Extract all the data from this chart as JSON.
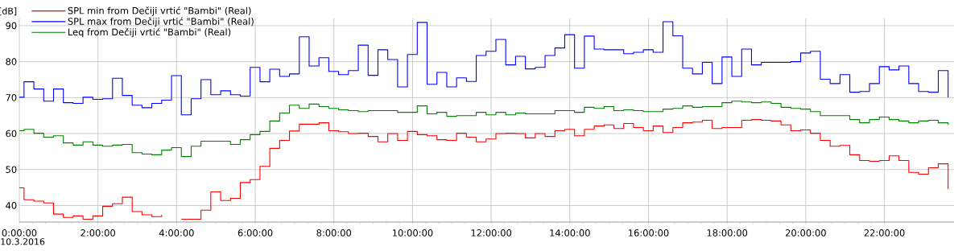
{
  "chart_data": {
    "type": "step",
    "ylabel": "[dB]",
    "annotations": [
      "10.3.2016"
    ],
    "x": [
      0,
      0.12,
      0.37,
      0.62,
      0.87,
      1.12,
      1.37,
      1.62,
      1.87,
      2.12,
      2.37,
      2.62,
      2.87,
      3.12,
      3.37,
      3.62,
      3.87,
      4.12,
      4.37,
      4.62,
      4.87,
      5.12,
      5.37,
      5.62,
      5.87,
      6.12,
      6.37,
      6.62,
      6.87,
      7.12,
      7.37,
      7.62,
      7.87,
      8.12,
      8.37,
      8.62,
      8.87,
      9.12,
      9.37,
      9.62,
      9.87,
      10.12,
      10.37,
      10.62,
      10.87,
      11.12,
      11.37,
      11.62,
      11.87,
      12.12,
      12.37,
      12.62,
      12.87,
      13.12,
      13.37,
      13.62,
      13.87,
      14.12,
      14.37,
      14.62,
      14.87,
      15.12,
      15.37,
      15.62,
      15.87,
      16.12,
      16.37,
      16.62,
      16.87,
      17.12,
      17.37,
      17.62,
      17.87,
      18.12,
      18.37,
      18.62,
      18.87,
      19.12,
      19.37,
      19.62,
      19.87,
      20.12,
      20.37,
      20.62,
      20.87,
      21.12,
      21.37,
      21.62,
      21.87,
      22.12,
      22.37,
      22.62,
      22.87,
      23.12,
      23.37,
      23.62
    ],
    "series": [
      {
        "name": "SPL min from Dečiji vrtić \"Bambi\" (Real)",
        "color": "#ff0000",
        "values": [
          44.9,
          41.6,
          41.2,
          40.7,
          37.6,
          36.7,
          37.1,
          36.2,
          37.1,
          39.8,
          40.5,
          42.3,
          38.3,
          37.4,
          36.9,
          37.4,
          null,
          36.2,
          36.2,
          38.7,
          43.8,
          41.4,
          42.0,
          46.4,
          47.2,
          50.9,
          55.9,
          58.1,
          60.7,
          62.6,
          62.6,
          63.0,
          60.8,
          60.5,
          60.0,
          60.1,
          59.2,
          57.7,
          60.0,
          58.1,
          60.6,
          59.7,
          59.4,
          58.3,
          58.1,
          60.1,
          59.0,
          57.7,
          58.5,
          60.0,
          60.1,
          60.0,
          58.8,
          60.0,
          59.2,
          60.8,
          61.2,
          59.4,
          61.2,
          62.1,
          62.4,
          61.4,
          62.8,
          61.7,
          60.8,
          62.1,
          60.3,
          61.7,
          63.0,
          63.2,
          63.7,
          61.4,
          61.7,
          61.7,
          63.7,
          63.9,
          63.7,
          63.5,
          62.4,
          60.8,
          61.0,
          60.1,
          58.1,
          56.5,
          56.7,
          54.1,
          52.5,
          52.3,
          52.5,
          53.8,
          52.5,
          49.2,
          48.7,
          50.5,
          51.6,
          44.5
        ]
      },
      {
        "name": "SPL max from Dečiji vrtić \"Bambi\" (Real)",
        "color": "#0000ff",
        "values": [
          70.1,
          74.4,
          72.4,
          69.0,
          72.4,
          68.6,
          68.4,
          70.1,
          69.5,
          69.7,
          75.4,
          70.6,
          67.9,
          67.2,
          68.4,
          69.3,
          76.1,
          65.2,
          69.7,
          75.0,
          70.8,
          71.9,
          70.8,
          70.4,
          78.4,
          74.4,
          77.9,
          75.9,
          76.6,
          86.9,
          78.8,
          81.1,
          77.3,
          76.4,
          77.5,
          84.6,
          76.2,
          83.3,
          80.6,
          73.0,
          82.0,
          90.9,
          73.7,
          77.0,
          73.0,
          75.5,
          74.5,
          81.7,
          82.9,
          86.2,
          79.1,
          81.5,
          78.0,
          78.4,
          81.7,
          83.8,
          87.5,
          78.2,
          87.1,
          83.5,
          83.3,
          83.3,
          82.2,
          82.6,
          83.3,
          82.6,
          91.1,
          87.2,
          78.2,
          76.6,
          79.8,
          73.9,
          81.3,
          75.9,
          83.5,
          79.1,
          79.8,
          79.8,
          79.8,
          80.0,
          82.4,
          82.9,
          75.1,
          73.9,
          76.4,
          71.5,
          71.7,
          73.9,
          78.6,
          77.7,
          78.8,
          73.9,
          71.7,
          71.5,
          77.5,
          70.1
        ]
      },
      {
        "name": "Leq from Dečiji vrtić \"Bambi\" (Real)",
        "color": "#008000",
        "values": [
          60.8,
          61.2,
          60.1,
          59.0,
          59.4,
          57.4,
          56.8,
          57.7,
          56.8,
          56.5,
          56.8,
          57.0,
          54.7,
          54.3,
          54.1,
          55.4,
          56.1,
          53.6,
          56.5,
          57.9,
          57.9,
          57.9,
          57.0,
          58.3,
          59.7,
          60.6,
          63.5,
          65.7,
          67.9,
          67.0,
          68.2,
          67.5,
          67.0,
          66.6,
          66.4,
          66.1,
          66.4,
          66.4,
          66.4,
          65.9,
          65.9,
          67.7,
          65.5,
          65.9,
          64.8,
          65.0,
          65.0,
          65.9,
          65.2,
          65.9,
          65.2,
          65.7,
          65.5,
          65.5,
          65.5,
          66.4,
          66.4,
          65.9,
          67.3,
          67.0,
          67.5,
          66.4,
          66.6,
          66.4,
          66.1,
          66.1,
          66.8,
          67.0,
          67.7,
          67.3,
          67.5,
          67.5,
          68.6,
          69.0,
          68.8,
          68.6,
          68.8,
          68.4,
          67.3,
          67.0,
          66.8,
          66.1,
          65.0,
          65.0,
          65.0,
          63.9,
          63.0,
          63.9,
          64.6,
          63.9,
          63.5,
          63.0,
          63.5,
          63.7,
          63.0,
          62.4
        ]
      }
    ],
    "xlim": [
      0,
      23.77
    ],
    "ylim": [
      35.4,
      92
    ],
    "xticks": [
      {
        "value": 0,
        "label": "0:00:00"
      },
      {
        "value": 2,
        "label": "2:00:00"
      },
      {
        "value": 4,
        "label": "4:00:00"
      },
      {
        "value": 6,
        "label": "6:00:00"
      },
      {
        "value": 8,
        "label": "8:00:00"
      },
      {
        "value": 10,
        "label": "10:00:00"
      },
      {
        "value": 12,
        "label": "12:00:00"
      },
      {
        "value": 14,
        "label": "14:00:00"
      },
      {
        "value": 16,
        "label": "16:00:00"
      },
      {
        "value": 18,
        "label": "18:00:00"
      },
      {
        "value": 20,
        "label": "20:00:00"
      },
      {
        "value": 22,
        "label": "22:00:00"
      }
    ],
    "yticks": [
      40,
      50,
      60,
      70,
      80,
      90
    ],
    "grid": true,
    "legend": "top left"
  }
}
